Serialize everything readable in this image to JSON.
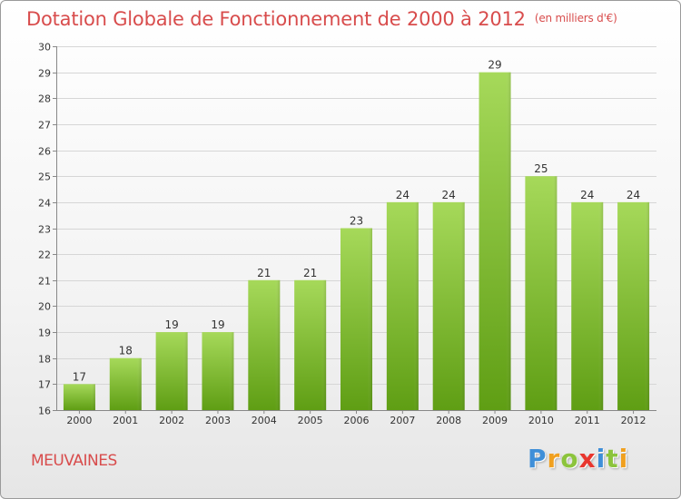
{
  "title": "Dotation Globale de Fonctionnement de 2000 à 2012",
  "subtitle": "(en milliers d'€)",
  "commune": "MEUVAINES",
  "logo": {
    "letters": [
      "P",
      "r",
      "o",
      "x",
      "i",
      "t",
      "i"
    ],
    "colors": [
      "#3f8fd8",
      "#f0a020",
      "#8cc43c",
      "#e8362e",
      "#3f8fd8",
      "#8cc43c",
      "#f0a020"
    ]
  },
  "colors": {
    "title": "#d84c4c",
    "bar_light": "#a6d95a",
    "bar_dark": "#5f9e14",
    "grid": "#d6d6d6"
  },
  "chart_data": {
    "type": "bar",
    "title": "Dotation Globale de Fonctionnement de 2000 à 2012",
    "subtitle": "(en milliers d'€)",
    "categories": [
      "2000",
      "2001",
      "2002",
      "2003",
      "2004",
      "2005",
      "2006",
      "2007",
      "2008",
      "2009",
      "2010",
      "2011",
      "2012"
    ],
    "values": [
      17,
      18,
      19,
      19,
      21,
      21,
      23,
      24,
      24,
      29,
      25,
      24,
      24
    ],
    "data_labels": [
      "17",
      "18",
      "19",
      "19",
      "21",
      "21",
      "23",
      "24",
      "24",
      "29",
      "25",
      "24",
      "24"
    ],
    "ylim": [
      16,
      30
    ],
    "yticks": [
      16,
      17,
      18,
      19,
      20,
      21,
      22,
      23,
      24,
      25,
      26,
      27,
      28,
      29,
      30
    ],
    "ytick_labels": [
      "16",
      "17",
      "18",
      "19",
      "20",
      "21",
      "22",
      "23",
      "24",
      "25",
      "26",
      "27",
      "28",
      "29",
      "30"
    ],
    "grid": true,
    "xlabel": "",
    "ylabel": ""
  }
}
